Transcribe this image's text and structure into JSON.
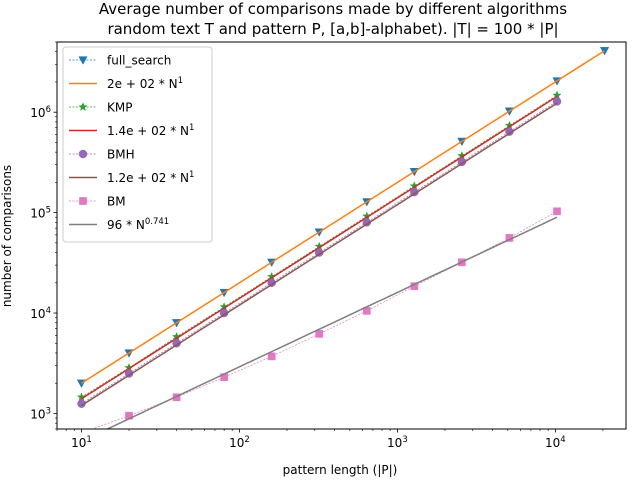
{
  "chart_data": {
    "type": "line",
    "title_lines": [
      "Average number of comparisons made by different algorithms",
      "random text T and pattern P, [a,b]-alphabet). |T| = 100 * |P|"
    ],
    "xlabel": "pattern length (|P|)",
    "ylabel": "number of comparisons",
    "xscale": "log",
    "yscale": "log",
    "xlim": [
      7,
      28000
    ],
    "ylim": [
      700,
      5000000
    ],
    "xticks": [
      {
        "value": 10,
        "base": "10",
        "exp": "1"
      },
      {
        "value": 100,
        "base": "10",
        "exp": "2"
      },
      {
        "value": 1000,
        "base": "10",
        "exp": "3"
      },
      {
        "value": 10000,
        "base": "10",
        "exp": "4"
      }
    ],
    "yticks": [
      {
        "value": 1000,
        "base": "10",
        "exp": "3"
      },
      {
        "value": 10000,
        "base": "10",
        "exp": "4"
      },
      {
        "value": 100000,
        "base": "10",
        "exp": "5"
      },
      {
        "value": 1000000,
        "base": "10",
        "exp": "6"
      }
    ],
    "grid": false,
    "legend_position": "upper-left",
    "series": [
      {
        "name": "full_search",
        "kind": "marker",
        "marker": "triangle-down",
        "color": "#1f77b4",
        "x": [
          10,
          20,
          40,
          80,
          160,
          320,
          640,
          1280,
          2560,
          5120,
          10240,
          20480
        ],
        "y": [
          2000,
          4000,
          8000,
          16000,
          32000,
          64000,
          128000,
          256000,
          512000,
          1024000,
          2048000,
          4096000
        ]
      },
      {
        "name": "2e + 02 * N",
        "name_exp": "1",
        "kind": "fit",
        "color": "#ff7f0e",
        "coef": 200,
        "power": 1,
        "x_range": [
          10,
          20480
        ]
      },
      {
        "name": "KMP",
        "kind": "marker",
        "marker": "star",
        "color": "#2ca02c",
        "x": [
          10,
          20,
          40,
          80,
          160,
          320,
          640,
          1280,
          2560,
          5120,
          10240
        ],
        "y": [
          1450,
          2850,
          5800,
          11500,
          23000,
          46000,
          92000,
          184000,
          368000,
          736000,
          1470000
        ]
      },
      {
        "name": "1.4e + 02 * N",
        "name_exp": "1",
        "kind": "fit",
        "color": "#d62728",
        "coef": 140,
        "power": 1,
        "x_range": [
          10,
          10240
        ]
      },
      {
        "name": "BMH",
        "kind": "marker",
        "marker": "circle",
        "color": "#9467bd",
        "x": [
          10,
          20,
          40,
          80,
          160,
          320,
          640,
          1280,
          2560,
          5120,
          10240
        ],
        "y": [
          1250,
          2500,
          5000,
          10000,
          20000,
          40000,
          80000,
          160000,
          320000,
          640000,
          1280000
        ]
      },
      {
        "name": "1.2e + 02 * N",
        "name_exp": "1",
        "kind": "fit",
        "color": "#8c564b",
        "coef": 120,
        "power": 1,
        "x_range": [
          10,
          10240
        ]
      },
      {
        "name": "BM",
        "kind": "marker",
        "marker": "square",
        "color": "#e377c2",
        "x": [
          10,
          20,
          40,
          80,
          160,
          320,
          640,
          1280,
          2560,
          5120,
          10240
        ],
        "y": [
          640,
          950,
          1450,
          2300,
          3700,
          6200,
          10500,
          18500,
          32000,
          56000,
          103000
        ]
      },
      {
        "name": "96 * N",
        "name_exp": "0.741",
        "kind": "fit",
        "color": "#7f7f7f",
        "coef": 96,
        "power": 0.741,
        "x_range": [
          10,
          10240
        ]
      }
    ]
  }
}
